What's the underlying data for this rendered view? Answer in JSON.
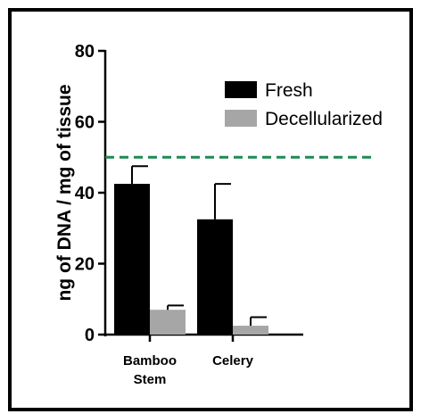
{
  "chart_data": {
    "type": "bar",
    "title": "",
    "xlabel": "",
    "ylabel": "ng of DNA / mg of tissue",
    "ylim": [
      0,
      80
    ],
    "yticks": [
      0,
      20,
      40,
      60,
      80
    ],
    "grid": false,
    "legend_position": "top-right",
    "categories": [
      [
        "Bamboo",
        "Stem"
      ],
      [
        "Celery"
      ]
    ],
    "series": [
      {
        "name": "Fresh",
        "color": "#000000",
        "values": [
          42.5,
          32.5
        ],
        "errors": [
          5.0,
          10.0
        ]
      },
      {
        "name": "Decellularized",
        "color": "#a6a6a6",
        "values": [
          7.0,
          2.5
        ],
        "errors": [
          1.2,
          2.4
        ]
      }
    ],
    "reference_line": {
      "y": 50,
      "style": "dashed",
      "color": "#1e8a55"
    }
  }
}
